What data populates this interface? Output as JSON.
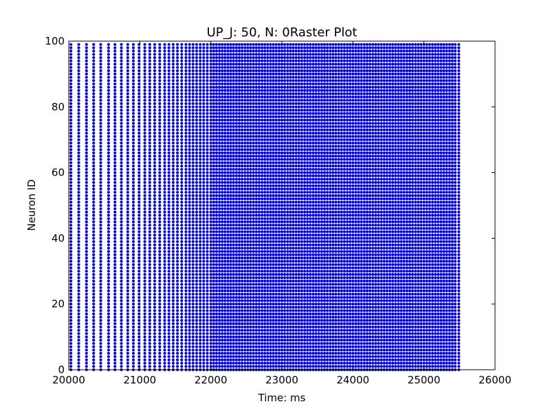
{
  "chart_data": {
    "type": "scatter",
    "title": "UP_J: 50, N: 0Raster Plot",
    "xlabel": "Time: ms",
    "ylabel": "Neuron ID",
    "xlim": [
      20000,
      26000
    ],
    "ylim": [
      0,
      100
    ],
    "xticks": [
      "20000",
      "21000",
      "22000",
      "23000",
      "24000",
      "25000",
      "26000"
    ],
    "yticks": [
      "0",
      "20",
      "40",
      "60",
      "80",
      "100"
    ],
    "grid": false,
    "legend": "none",
    "colors": {
      "marker": "#0000ff",
      "axes": "#000000"
    },
    "series": [
      {
        "spike_times_ms": [
          20030,
          20140,
          20250,
          20350,
          20450,
          20560,
          20650,
          20740,
          20830,
          20910,
          20990,
          21070,
          21140,
          21210,
          21280,
          21350,
          21410,
          21470,
          21530,
          21590,
          21650,
          21700,
          21750,
          21800,
          21850,
          21900,
          21950,
          22000,
          22040,
          22080,
          22120,
          22160,
          22200,
          22240,
          22280,
          22320,
          22360,
          22400,
          22440,
          22480,
          22520,
          22560,
          22600,
          22640,
          22680,
          22720,
          22760,
          22800,
          22840,
          22880,
          22920,
          22960,
          23000,
          23040,
          23080,
          23120,
          23160,
          23200,
          23240,
          23280,
          23320,
          23360,
          23400,
          23440,
          23480,
          23520,
          23560,
          23600,
          23640,
          23680,
          23720,
          23760,
          23800,
          23840,
          23880,
          23920,
          23960,
          24000,
          24040,
          24080,
          24120,
          24160,
          24200,
          24240,
          24280,
          24320,
          24360,
          24400,
          24440,
          24480,
          24520,
          24560,
          24600,
          24640,
          24680,
          24720,
          24760,
          24800,
          24840,
          24880,
          24920,
          24960,
          25000,
          25040,
          25080,
          25120,
          25160,
          25200,
          25240,
          25280,
          25320,
          25360,
          25400,
          25440,
          25490
        ],
        "neuron_ids": {
          "from": 0,
          "to": 99,
          "step": 1
        }
      }
    ]
  }
}
